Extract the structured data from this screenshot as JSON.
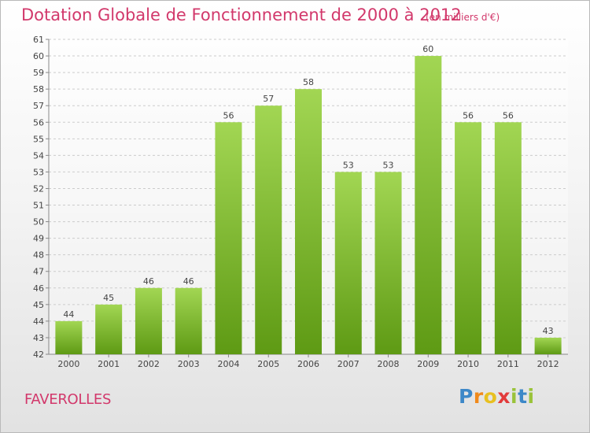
{
  "title": "Dotation Globale de Fonctionnement de 2000 à 2012",
  "subtitle": "(en milliers d'€)",
  "commune": "FAVEROLLES",
  "logo": "Proxiti",
  "colors": {
    "title": "#d2386b",
    "bar_top": "#a2d653",
    "bar_bottom": "#5e9a14",
    "grid": "#cccccc"
  },
  "chart_data": {
    "type": "bar",
    "title": "Dotation Globale de Fonctionnement de 2000 à 2012",
    "subtitle": "(en milliers d'€)",
    "categories": [
      "2000",
      "2001",
      "2002",
      "2003",
      "2004",
      "2005",
      "2006",
      "2007",
      "2008",
      "2009",
      "2010",
      "2011",
      "2012"
    ],
    "values": [
      44,
      45,
      46,
      46,
      56,
      57,
      58,
      53,
      53,
      60,
      56,
      56,
      43
    ],
    "ylim": [
      42,
      61
    ],
    "yticks": [
      42,
      43,
      44,
      45,
      46,
      47,
      48,
      49,
      50,
      51,
      52,
      53,
      54,
      55,
      56,
      57,
      58,
      59,
      60,
      61
    ],
    "grid": true,
    "legend": "none"
  }
}
